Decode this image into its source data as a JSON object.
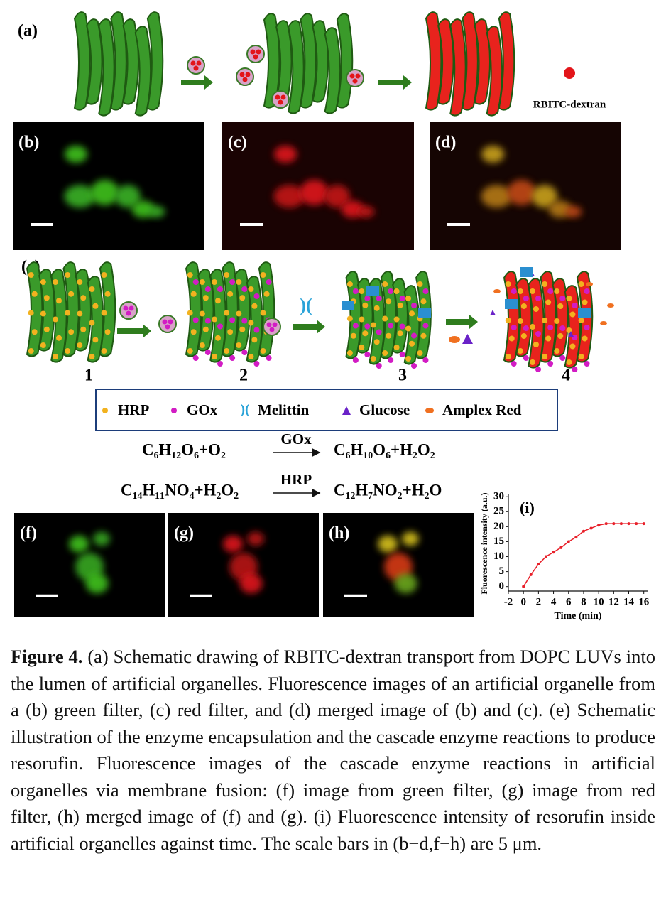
{
  "panels": {
    "a": "(a)",
    "b": "(b)",
    "c": "(c)",
    "d": "(d)",
    "e": "(e)",
    "f": "(f)",
    "g": "(g)",
    "h": "(h)"
  },
  "schematic_a": {
    "label": "RBITC-dextran"
  },
  "stage_numbers": [
    "1",
    "2",
    "3",
    "4"
  ],
  "legend": [
    "HRP",
    "GOx",
    "Melittin",
    "Glucose",
    "Amplex Red"
  ],
  "reactions": [
    {
      "reactants": "C₆H₁₂O₆+O₂",
      "enzyme": "GOx",
      "products": "C₆H₁₀O₆+H₂O₂"
    },
    {
      "reactants": "C₁₄H₁₁NO₄+H₂O₂",
      "enzyme": "HRP",
      "products": "C₁₂H₇NO₂+H₂O"
    }
  ],
  "chart_data": {
    "type": "line",
    "annotation": "(i)",
    "x_label": "Time (min)",
    "y_label": "Fluorescence intensity (a.u.)",
    "x": [
      0,
      1,
      2,
      3,
      4,
      5,
      6,
      7,
      8,
      9,
      10,
      11,
      12,
      13,
      14,
      15,
      16
    ],
    "series": [
      {
        "color": "#e8202a",
        "values": [
          0,
          4,
          7.5,
          10,
          11.5,
          13,
          15,
          16.5,
          18.5,
          19.5,
          20.5,
          21,
          21,
          21,
          21,
          21,
          21
        ]
      }
    ],
    "xlim": [
      -2,
      16.5
    ],
    "ylim": [
      -1.5,
      31
    ],
    "xticks": [
      -2,
      0,
      2,
      4,
      6,
      8,
      10,
      12,
      14,
      16
    ],
    "yticks": [
      0,
      5,
      10,
      15,
      20,
      25,
      30
    ]
  },
  "caption": {
    "label": "Figure 4.",
    "text": "(a) Schematic drawing of RBITC-dextran transport from DOPC LUVs into the lumen of artificial organelles. Fluorescence images of an artificial organelle from a (b) green filter, (c) red filter, and (d) merged image of (b) and (c). (e) Schematic illustration of the enzyme encapsulation and the cascade enzyme reactions to produce resorufin. Fluorescence images of the cascade enzyme reactions in artificial organelles via membrane fusion: (f) image from green filter, (g) image from red filter, (h) merged image of (f) and (g). (i) Fluorescence intensity of resorufin inside artificial organelles against time. The scale bars in (b−d,f−h) are 5 μm."
  }
}
